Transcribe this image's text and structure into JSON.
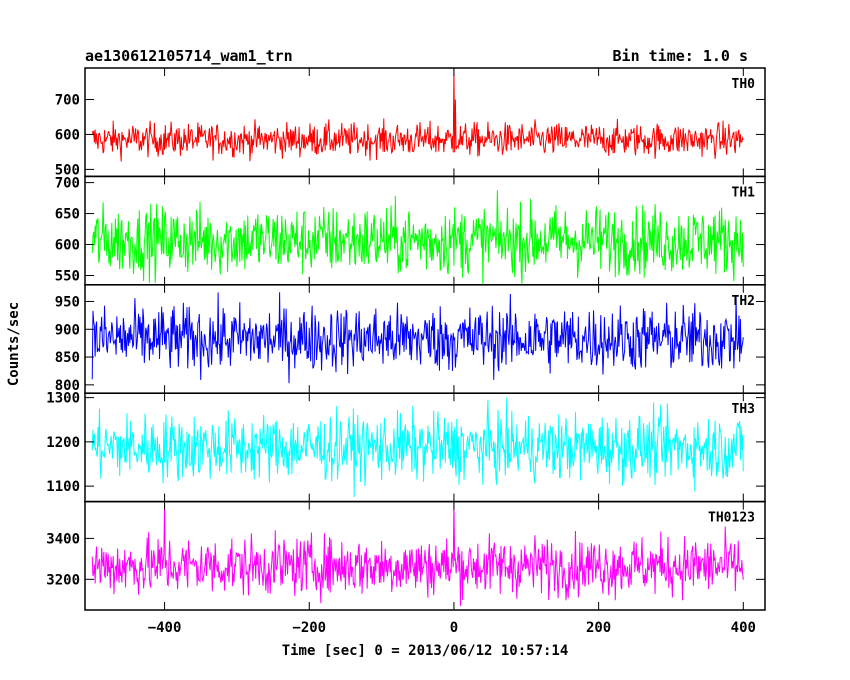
{
  "chart_data": {
    "type": "line",
    "title": "ae130612105714_wam1_trn",
    "bin_time_label": "Bin time: 1.0 s",
    "xlabel": "Time [sec] 0 = 2013/06/12 10:57:14",
    "ylabel": "Counts/sec",
    "xlim": [
      -510,
      430
    ],
    "x_ticks": [
      -400,
      -200,
      0,
      200,
      400
    ],
    "x_tick_labels": [
      "−400",
      "−200",
      "0",
      "200",
      "400"
    ],
    "x_range_data": [
      -500,
      400
    ],
    "bin_time": 1.0,
    "grid": false,
    "panels": [
      {
        "name": "TH0",
        "color": "#ff0000",
        "ylim": [
          480,
          790
        ],
        "yticks": [
          500,
          600,
          700
        ],
        "mean": 585,
        "noise": 24,
        "spikes": [
          {
            "x": 0,
            "y": 790
          },
          {
            "x": 2,
            "y": 700
          }
        ]
      },
      {
        "name": "TH1",
        "color": "#00ff00",
        "ylim": [
          535,
          710
        ],
        "yticks": [
          550,
          600,
          650,
          700
        ],
        "mean": 607,
        "noise": 28,
        "spikes": []
      },
      {
        "name": "TH2",
        "color": "#0000ff",
        "ylim": [
          785,
          980
        ],
        "yticks": [
          800,
          850,
          900,
          950
        ],
        "mean": 883,
        "noise": 30,
        "spikes": []
      },
      {
        "name": "TH3",
        "color": "#00ffff",
        "ylim": [
          1065,
          1310
        ],
        "yticks": [
          1100,
          1200,
          1300
        ],
        "mean": 1188,
        "noise": 38,
        "spikes": []
      },
      {
        "name": "TH0123",
        "color": "#ff00ff",
        "ylim": [
          3050,
          3580
        ],
        "yticks": [
          3200,
          3400
        ],
        "mean": 3265,
        "noise": 72,
        "spikes": [
          {
            "x": 0,
            "y": 3580
          },
          {
            "x": -400,
            "y": 3570
          }
        ]
      }
    ]
  }
}
